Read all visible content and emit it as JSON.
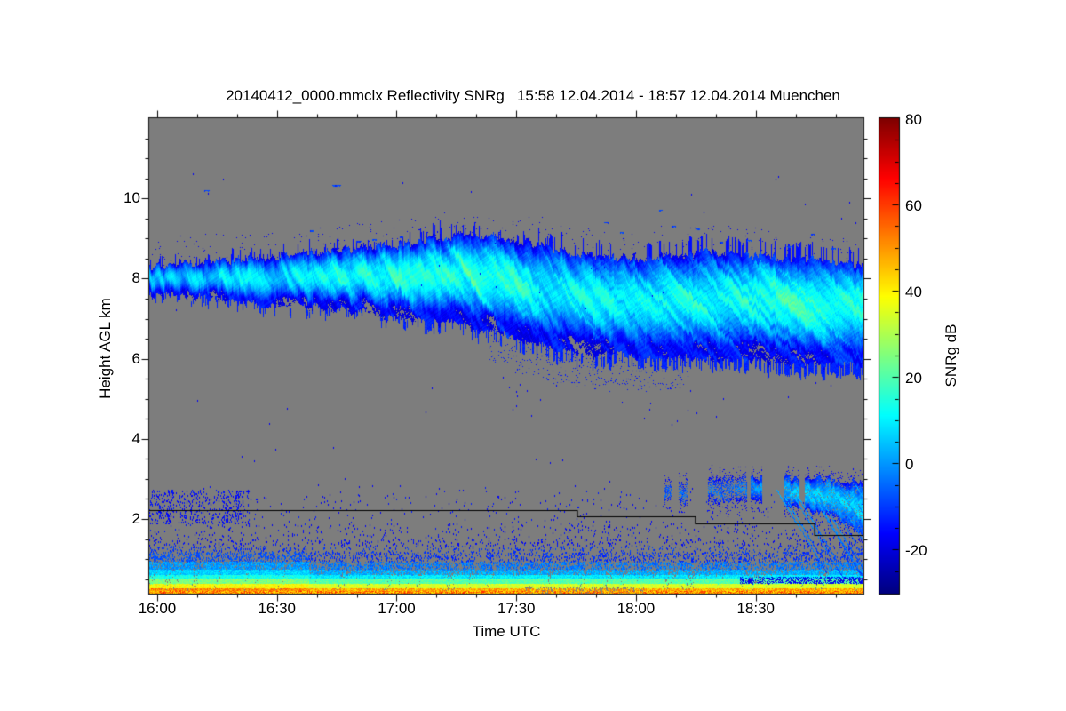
{
  "figure": {
    "background_color": "#ffffff",
    "no_signal_color": "#7d7d7d"
  },
  "chart_data": {
    "type": "heatmap",
    "title": "20140412_0000.mmclx Reflectivity SNRg   15:58 12.04.2014 - 18:57 12.04.2014 Muenchen",
    "station": "Muenchen",
    "file": "20140412_0000.mmclx",
    "quantity": "Reflectivity SNRg",
    "time_start": "15:58 12.04.2014",
    "time_end": "18:57 12.04.2014",
    "x_axis": {
      "label": "Time UTC",
      "duration_min": 179,
      "major_ticks": [
        {
          "label": "16:00",
          "min": 2
        },
        {
          "label": "16:30",
          "min": 32
        },
        {
          "label": "17:00",
          "min": 62
        },
        {
          "label": "17:30",
          "min": 92
        },
        {
          "label": "18:00",
          "min": 122
        },
        {
          "label": "18:30",
          "min": 152
        }
      ],
      "minor_step_min": 10
    },
    "y_axis": {
      "label": "Height AGL km",
      "min_km": 0.14,
      "max_km": 12.0,
      "major_ticks": [
        10,
        8,
        6,
        4,
        2
      ],
      "minor_step_km": 0.5
    },
    "colorbar": {
      "label": "SNRg dB",
      "min": -30,
      "max": 80,
      "major_ticks": [
        80,
        60,
        40,
        20,
        0,
        -20
      ],
      "minor_step": 5,
      "colormap": "jet"
    },
    "features": {
      "cirrus_band": {
        "description": "descending cirrus cloud layer, SNR mostly -15..+20 dB",
        "t_min": [
          0,
          18,
          30,
          49,
          62,
          78,
          93,
          107,
          122,
          139,
          152,
          167,
          179
        ],
        "top_km": [
          8.3,
          8.45,
          8.55,
          8.75,
          8.85,
          9.1,
          8.95,
          8.6,
          8.5,
          8.65,
          8.55,
          8.45,
          8.3
        ],
        "base_km": [
          7.62,
          7.5,
          7.35,
          7.25,
          7.0,
          6.85,
          6.5,
          6.15,
          6.05,
          6.05,
          5.95,
          5.85,
          5.9
        ],
        "core_db": [
          5,
          7,
          9,
          14,
          15,
          16,
          14,
          11,
          10,
          12,
          14,
          14,
          12
        ]
      },
      "low_cloud_layer": {
        "description": "shallow cloud layer near 2.5-3 km after 18:05 with fall streaks at end",
        "t_min": [
          128,
          140,
          152,
          163,
          172,
          179
        ],
        "top_km": [
          2.8,
          3.0,
          3.05,
          3.0,
          3.0,
          2.9
        ],
        "base_km": [
          2.45,
          2.4,
          2.45,
          2.3,
          2.0,
          1.65
        ],
        "core_db": [
          -12,
          -9,
          -5,
          1,
          2,
          2
        ]
      },
      "boundary_layer": {
        "description": "speckled clear-air echo below ~1.7 km, denser and brighter before 16:40",
        "top_km": 1.7,
        "left_enhanced_until_min": 40
      },
      "surface_clutter": {
        "description": "strong yellow/orange echo below ~0.5 km, saturated at lowest gates",
        "top_km": 0.55,
        "peak_db": 55
      },
      "floor_line": {
        "description": "black stepped line (lowest usable gate)",
        "segments": [
          {
            "t_start": 0,
            "t_end": 107.3,
            "h_km": 2.23
          },
          {
            "t_start": 107.3,
            "t_end": 136.9,
            "h_km": 2.06
          },
          {
            "t_start": 136.9,
            "t_end": 166.8,
            "h_km": 1.88
          },
          {
            "t_start": 166.8,
            "t_end": 179,
            "h_km": 1.61
          }
        ]
      },
      "high_specks": [
        {
          "t": 14,
          "h": 10.2,
          "w": 6
        },
        {
          "t": 46,
          "h": 10.33,
          "w": 10
        },
        {
          "t": 40.5,
          "h": 9.2,
          "w": 4
        },
        {
          "t": 52,
          "h": 8.92,
          "w": 6
        },
        {
          "t": 56,
          "h": 8.98,
          "w": 5
        },
        {
          "t": 63,
          "h": 9.05,
          "w": 4
        },
        {
          "t": 114,
          "h": 9.4,
          "w": 5
        },
        {
          "t": 118,
          "h": 9.15,
          "w": 4
        },
        {
          "t": 128,
          "h": 9.7,
          "w": 4
        },
        {
          "t": 131,
          "h": 9.3,
          "w": 5
        },
        {
          "t": 137,
          "h": 9.25,
          "w": 5
        },
        {
          "t": 143,
          "h": 8.9,
          "w": 4
        },
        {
          "t": 150,
          "h": 8.95,
          "w": 5
        },
        {
          "t": 160,
          "h": 8.8,
          "w": 5
        },
        {
          "t": 166,
          "h": 9.1,
          "w": 4
        },
        {
          "t": 171,
          "h": 8.75,
          "w": 5
        }
      ],
      "speck_clusters": [
        {
          "t0": 88,
          "t1": 100,
          "h0": 4.4,
          "h1": 5.6,
          "count": 10
        },
        {
          "t0": 125,
          "t1": 152,
          "h0": 4.2,
          "h1": 5.4,
          "count": 9
        }
      ],
      "random_speck_count": 60
    }
  }
}
